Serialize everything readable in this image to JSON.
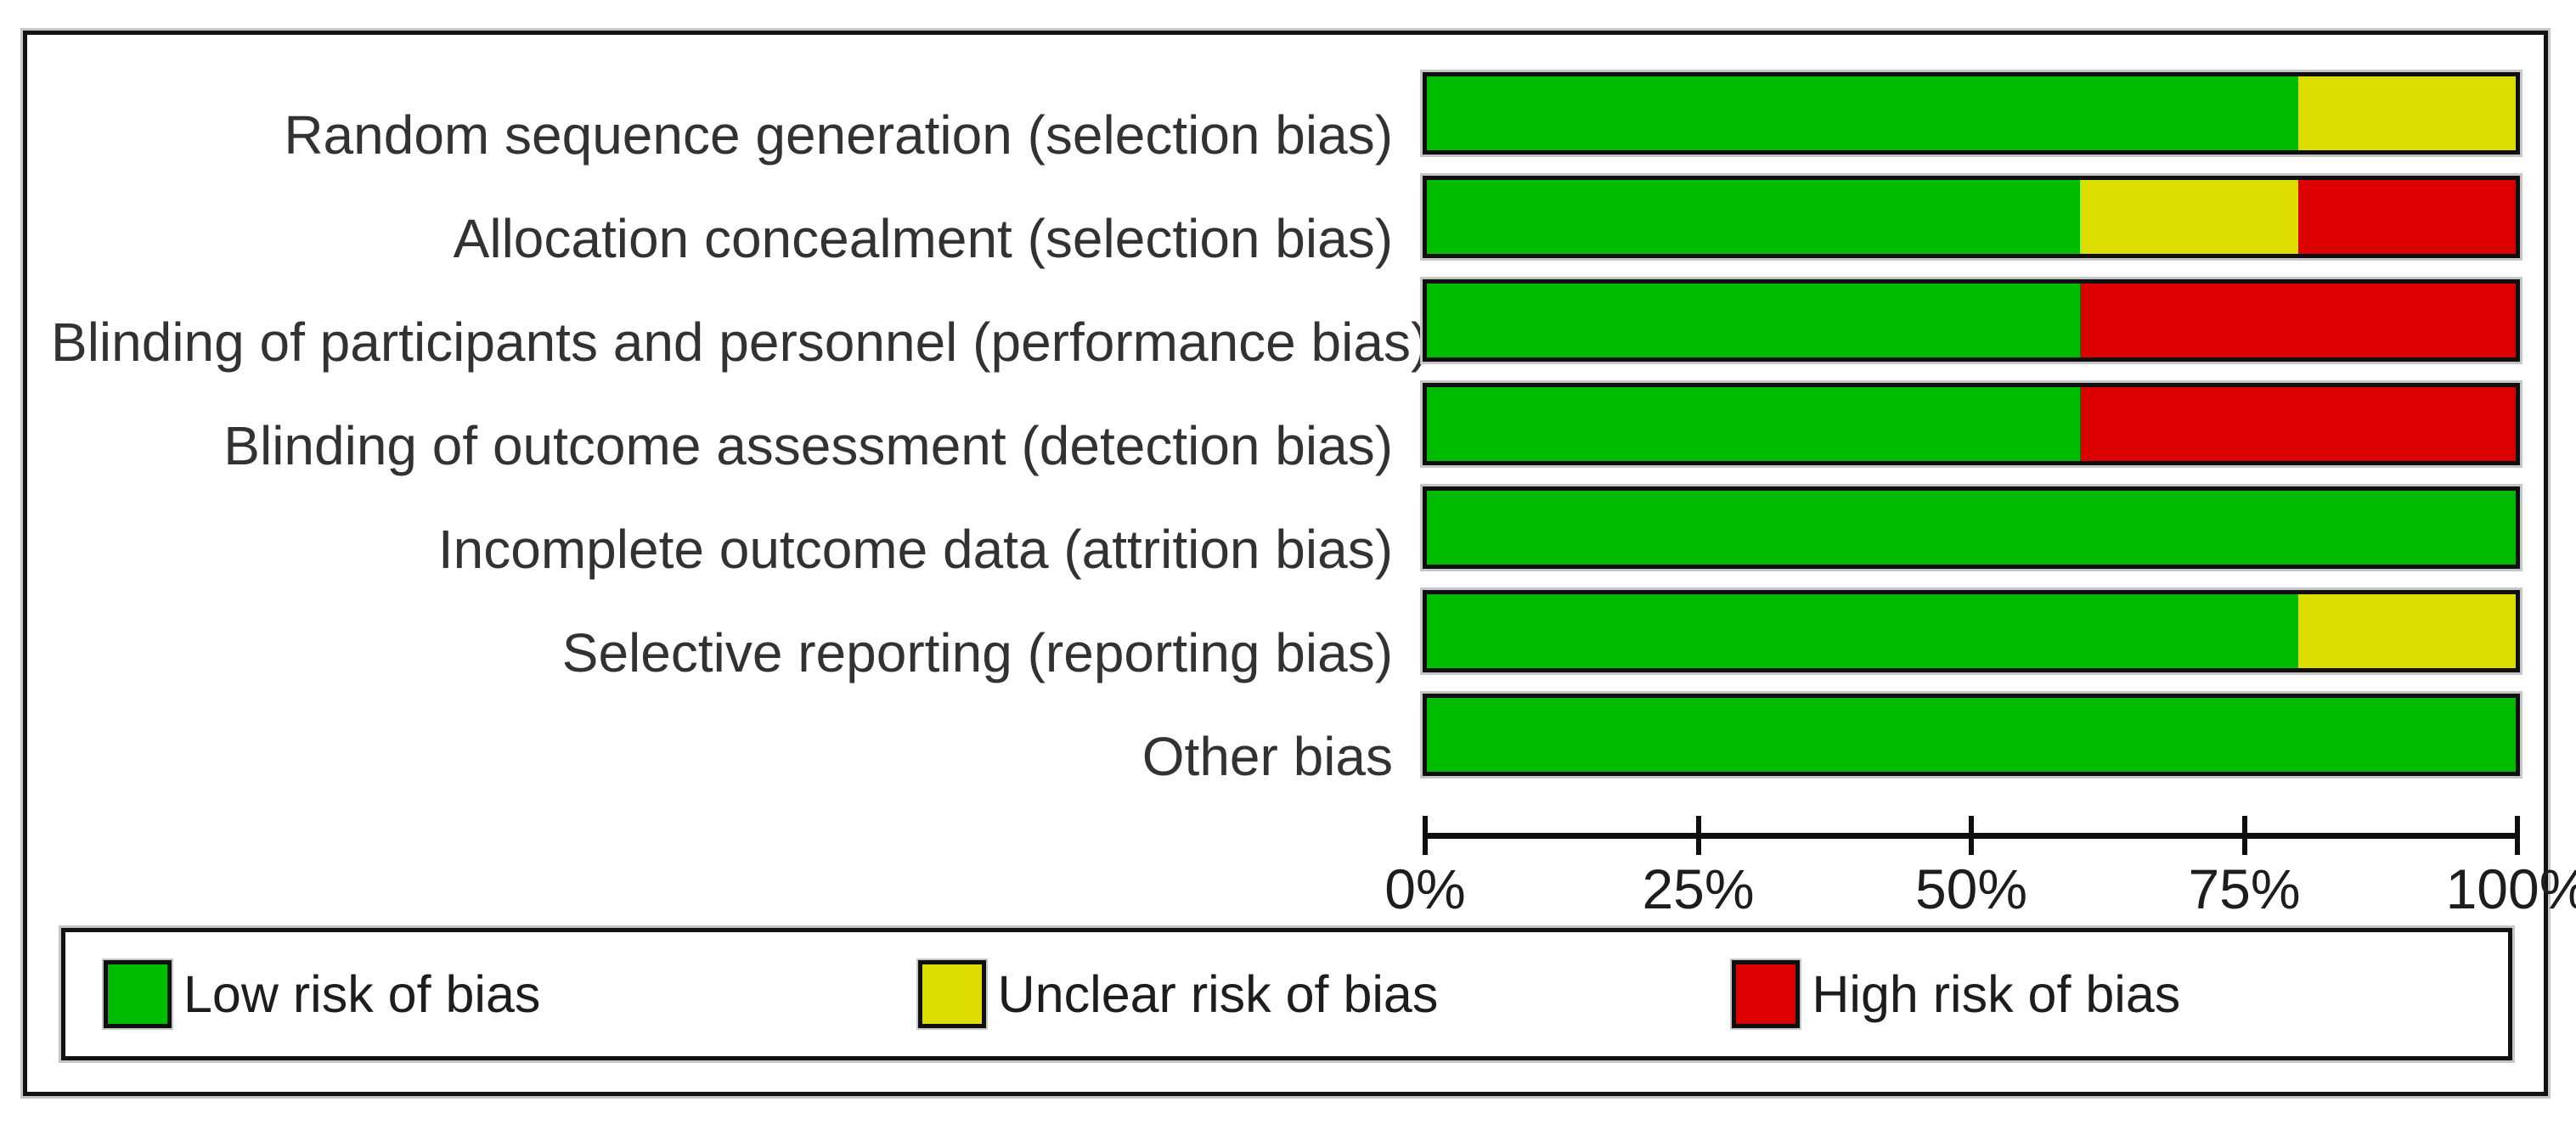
{
  "chart_data": {
    "type": "bar",
    "stacked": true,
    "orientation": "horizontal",
    "title": "",
    "xlabel": "",
    "ylabel": "",
    "x_axis": {
      "range": [
        0,
        100
      ],
      "tick_labels": [
        "0%",
        "25%",
        "50%",
        "75%",
        "100%"
      ],
      "unit": "percent",
      "grid": false
    },
    "categories": [
      "Random sequence generation (selection bias)",
      "Allocation concealment (selection bias)",
      "Blinding of participants and personnel (performance bias)",
      "Blinding of outcome assessment (detection bias)",
      "Incomplete outcome data (attrition bias)",
      "Selective reporting (reporting bias)",
      "Other bias"
    ],
    "series": [
      {
        "name": "Low risk of bias",
        "key": "low",
        "color": "#00bc00",
        "values": [
          80,
          60,
          60,
          60,
          100,
          80,
          100
        ]
      },
      {
        "name": "Unclear risk of bias",
        "key": "unclear",
        "color": "#dddd00",
        "values": [
          20,
          20,
          0,
          0,
          0,
          20,
          0
        ]
      },
      {
        "name": "High risk of bias",
        "key": "high",
        "color": "#dd0000",
        "values": [
          0,
          20,
          40,
          40,
          0,
          0,
          0
        ]
      }
    ],
    "legend_position": "bottom"
  },
  "legend": {
    "items": [
      {
        "label": "Low risk of bias",
        "key": "low"
      },
      {
        "label": "Unclear risk of bias",
        "key": "unclear"
      },
      {
        "label": "High risk of bias",
        "key": "high"
      }
    ]
  },
  "colors": {
    "low": "#00bc00",
    "unclear": "#dddd00",
    "high": "#dd0000",
    "border": "#0f0f0f",
    "shadow": "#c6c6c6"
  }
}
